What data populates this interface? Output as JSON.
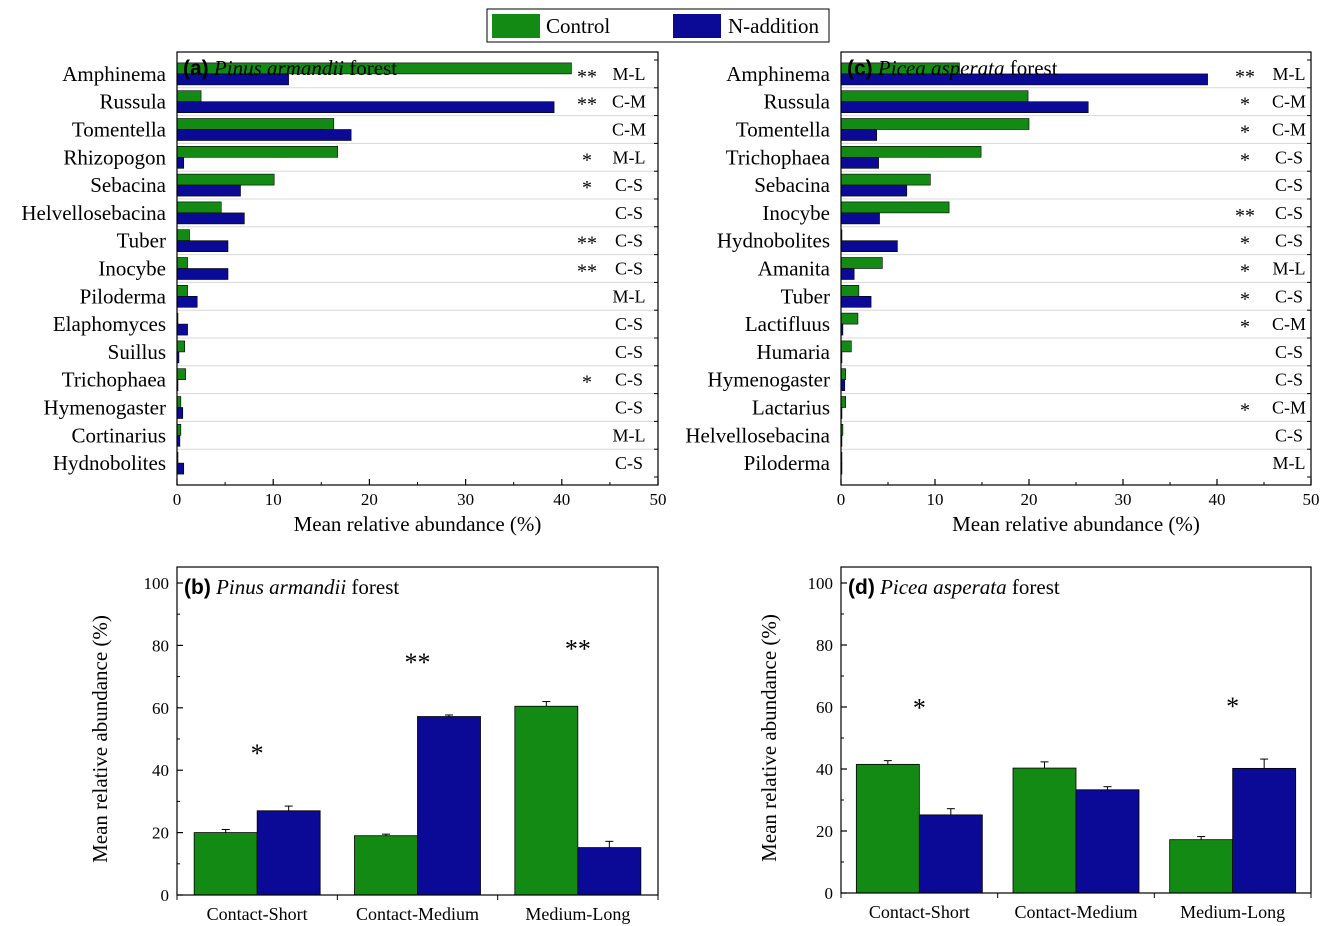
{
  "colors": {
    "control": "#138a13",
    "n_addition": "#0a0a96",
    "star": "#a0206a",
    "axis": "#000000"
  },
  "legend": {
    "control": "Control",
    "n_addition": "N-addition"
  },
  "chart_data": [
    {
      "id": "a",
      "type": "bar",
      "orientation": "horizontal",
      "panel_letter": "(a)",
      "title_species": "Pinus armandii",
      "title_suffix": " forest",
      "xlabel": "Mean relative abundance (%)",
      "ylabel": "",
      "xlim": [
        0,
        50
      ],
      "xticks": [
        "0",
        "10",
        "20",
        "30",
        "40",
        "50"
      ],
      "categories": [
        "Amphinema",
        "Russula",
        "Tomentella",
        "Rhizopogon",
        "Sebacina",
        "Helvellosebacina",
        "Tuber",
        "Inocybe",
        "Piloderma",
        "Elaphomyces",
        "Suillus",
        "Trichophaea",
        "Hymenogaster",
        "Cortinarius",
        "Hydnobolites"
      ],
      "series": [
        {
          "name": "Control",
          "values": [
            41,
            2.5,
            16.3,
            16.7,
            10.1,
            4.6,
            1.3,
            1.1,
            1.1,
            0.1,
            0.8,
            0.9,
            0.4,
            0.4,
            0.1
          ]
        },
        {
          "name": "N-addition",
          "values": [
            11.6,
            39.2,
            18.1,
            0.7,
            6.6,
            7.0,
            5.3,
            5.3,
            2.1,
            1.1,
            0.2,
            0.1,
            0.6,
            0.3,
            0.7
          ]
        }
      ],
      "significance": [
        "**",
        "**",
        "",
        "*",
        "*",
        "",
        "**",
        "**",
        "",
        "",
        "",
        "*",
        "",
        "",
        ""
      ],
      "types": [
        "M-L",
        "C-M",
        "C-M",
        "M-L",
        "C-S",
        "C-S",
        "C-S",
        "C-S",
        "M-L",
        "C-S",
        "C-S",
        "C-S",
        "C-S",
        "M-L",
        "C-S"
      ]
    },
    {
      "id": "c",
      "type": "bar",
      "orientation": "horizontal",
      "panel_letter": "(c)",
      "title_species": "Picea asperata",
      "title_suffix": " forest",
      "xlabel": "Mean relative abundance (%)",
      "ylabel": "",
      "xlim": [
        0,
        50
      ],
      "xticks": [
        "0",
        "10",
        "20",
        "30",
        "40",
        "50"
      ],
      "categories": [
        "Amphinema",
        "Russula",
        "Tomentella",
        "Trichophaea",
        "Sebacina",
        "Inocybe",
        "Hydnobolites",
        "Amanita",
        "Tuber",
        "Lactifluus",
        "Humaria",
        "Hymenogaster",
        "Lactarius",
        "Helvellosebacina",
        "Piloderma"
      ],
      "series": [
        {
          "name": "Control",
          "values": [
            12.6,
            19.9,
            20.0,
            14.9,
            9.5,
            11.5,
            0.1,
            4.4,
            1.9,
            1.8,
            1.1,
            0.5,
            0.5,
            0.2,
            0.1
          ]
        },
        {
          "name": "N-addition",
          "values": [
            39.0,
            26.3,
            3.8,
            4.0,
            7.0,
            4.1,
            6.0,
            1.4,
            3.2,
            0.2,
            0.1,
            0.4,
            0.1,
            0.1,
            0.1
          ]
        }
      ],
      "significance": [
        "**",
        "*",
        "*",
        "*",
        "",
        "**",
        "*",
        "*",
        "*",
        "*",
        "",
        "",
        "*",
        "",
        ""
      ],
      "types": [
        "M-L",
        "C-M",
        "C-M",
        "C-S",
        "C-S",
        "C-S",
        "C-S",
        "M-L",
        "C-S",
        "C-M",
        "C-S",
        "C-S",
        "C-M",
        "C-S",
        "M-L"
      ]
    },
    {
      "id": "b",
      "type": "bar",
      "orientation": "vertical",
      "panel_letter": "(b)",
      "title_species": "Pinus armandii",
      "title_suffix": " forest",
      "xlabel": "",
      "ylabel": "Mean relative abundance (%)",
      "ylim": [
        0,
        100
      ],
      "yticks": [
        "0",
        "20",
        "40",
        "60",
        "80",
        "100"
      ],
      "categories": [
        "Contact-Short",
        "Contact-Medium",
        "Medium-Long"
      ],
      "series": [
        {
          "name": "Control",
          "values": [
            20,
            19,
            60.5
          ],
          "errors": [
            1.0,
            0.5,
            1.5
          ]
        },
        {
          "name": "N-addition",
          "values": [
            27,
            57.2,
            15.2
          ],
          "errors": [
            1.5,
            0.5,
            2.0
          ]
        }
      ],
      "significance": [
        "*",
        "**",
        "**"
      ]
    },
    {
      "id": "d",
      "type": "bar",
      "orientation": "vertical",
      "panel_letter": "(d)",
      "title_species": "Picea asperata",
      "title_suffix": " forest",
      "xlabel": "",
      "ylabel": "Mean relative abundance (%)",
      "ylim": [
        0,
        100
      ],
      "yticks": [
        "0",
        "20",
        "40",
        "60",
        "80",
        "100"
      ],
      "categories": [
        "Contact-Short",
        "Contact-Medium",
        "Medium-Long"
      ],
      "series": [
        {
          "name": "Control",
          "values": [
            41.5,
            40.3,
            17.2
          ],
          "errors": [
            1.2,
            2.0,
            1.0
          ]
        },
        {
          "name": "N-addition",
          "values": [
            25.2,
            33.3,
            40.2
          ],
          "errors": [
            2.0,
            1.0,
            3.0
          ]
        }
      ],
      "significance": [
        "*",
        "",
        "*"
      ]
    }
  ]
}
